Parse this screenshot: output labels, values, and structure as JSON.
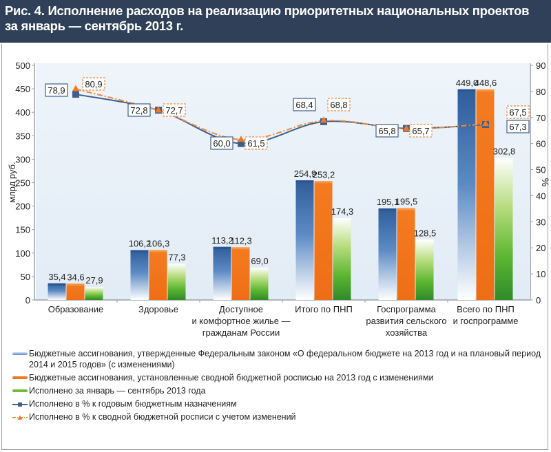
{
  "header": {
    "title_line1": "Рис. 4. Исполнение расходов на реализацию приоритетных национальных проектов",
    "title_line2": "за январь — сентябрь 2013 г."
  },
  "colors": {
    "header_bg": "#2f4058",
    "series_blue": "#3a6aa8",
    "series_orange": "#f07a22",
    "series_green": "#4fa62c",
    "line_blue": "#3d5f8e",
    "line_orange": "#f08a3c"
  },
  "chart_data": {
    "type": "bar",
    "title": "Рис. 4. Исполнение расходов на реализацию приоритетных национальных проектов за январь — сентябрь 2013 г.",
    "ylabel": "млрд руб.",
    "y2label": "%",
    "ylim": [
      0,
      500
    ],
    "y2lim": [
      0,
      90
    ],
    "yticks": [
      "0",
      "50",
      "100",
      "150",
      "200",
      "250",
      "300",
      "350",
      "400",
      "450",
      "500"
    ],
    "y2ticks": [
      "0",
      "10",
      "20",
      "30",
      "40",
      "50",
      "60",
      "70",
      "80",
      "90"
    ],
    "categories": [
      [
        "Образование"
      ],
      [
        "Здоровье"
      ],
      [
        "Доступное",
        "и комфортное жилье —",
        "гражданам России"
      ],
      [
        "Итого по ПНП"
      ],
      [
        "Госпрограмма",
        "развития сельского",
        "хозяйства"
      ],
      [
        "Всего по ПНП",
        "и госпрограмме"
      ]
    ],
    "series": [
      {
        "name": "Бюджетные ассигнования, утвержденные Федеральным законом «О федеральном бюджете на  2013 год и на плановый период",
        "name_line2": "2014 и  2015 годов» (с изменениями)",
        "kind": "bar",
        "values": [
          35.4,
          106.2,
          113.2,
          254.9,
          195.1,
          449.0
        ],
        "labels": [
          "35,4",
          "106,2",
          "113,2",
          "254,9",
          "195,1",
          "449,0"
        ]
      },
      {
        "name": "Бюджетные ассигнования, установленные сводной бюджетной росписью на  2013 год с изменениями",
        "kind": "bar",
        "values": [
          34.6,
          106.3,
          112.3,
          253.2,
          195.5,
          448.6
        ],
        "labels": [
          "34,6",
          "106,3",
          "112,3",
          "253,2",
          "195,5",
          "448,6"
        ]
      },
      {
        "name": "Исполнено за январь — сентябрь 2013 года",
        "kind": "bar",
        "values": [
          27.9,
          77.3,
          69.0,
          174.3,
          128.5,
          302.8
        ],
        "labels": [
          "27,9",
          "77,3",
          "69,0",
          "174,3",
          "128,5",
          "302,8"
        ]
      },
      {
        "name": "Исполнено в % к годовым бюджетным назначениям",
        "kind": "line",
        "axis": "right",
        "values": [
          78.9,
          72.8,
          60.0,
          68.4,
          65.8,
          67.3
        ],
        "labels": [
          "78,9",
          "72,8",
          "60,0",
          "68,4",
          "65,8",
          "67,3"
        ]
      },
      {
        "name": "Исполнено в % к сводной бюджетной росписи с учетом изменений",
        "kind": "line",
        "axis": "right",
        "values": [
          80.9,
          72.7,
          61.5,
          68.8,
          65.7,
          67.5
        ],
        "labels": [
          "80,9",
          "72,7",
          "61,5",
          "68,8",
          "65,7",
          "67,5"
        ]
      }
    ],
    "legend_position": "bottom",
    "grid": false
  }
}
